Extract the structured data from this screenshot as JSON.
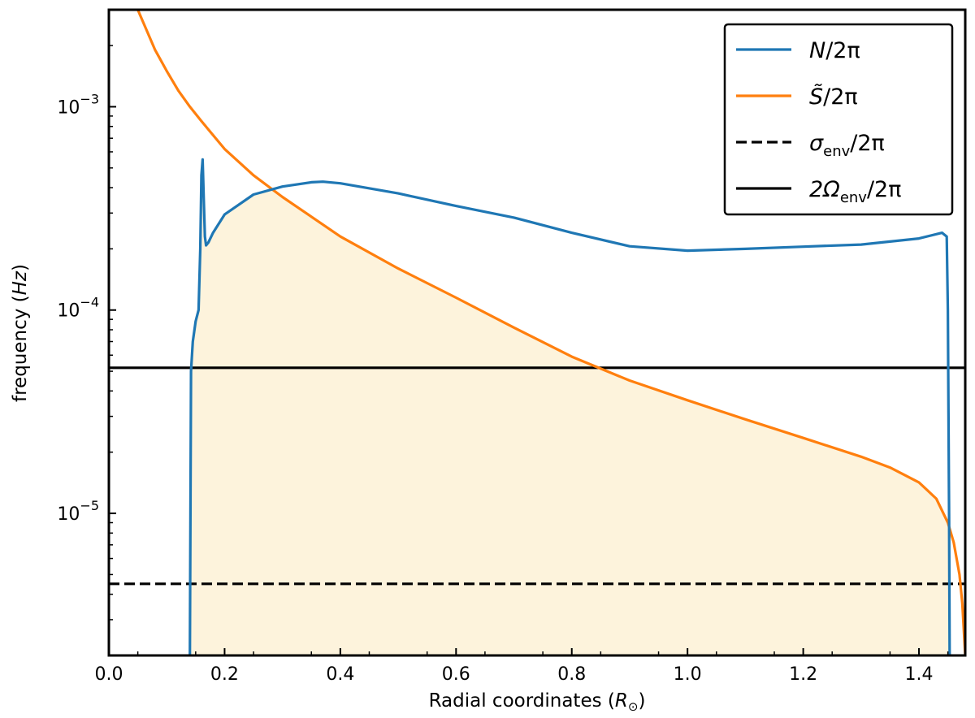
{
  "chart_data": {
    "type": "line",
    "title": "",
    "xlabel": "Radial coordinates",
    "xlabel_unit": "R",
    "xlabel_unit_sub": "⊙",
    "ylabel": "frequency",
    "ylabel_unit": "Hz",
    "xlim": [
      0.0,
      1.48
    ],
    "ylim": [
      2e-06,
      0.003
    ],
    "yscale": "log",
    "grid": false,
    "legend_position": "top-right",
    "x_ticks": [
      0.0,
      0.2,
      0.4,
      0.6,
      0.8,
      1.0,
      1.2,
      1.4
    ],
    "x_tick_labels": [
      "0.0",
      "0.2",
      "0.4",
      "0.6",
      "0.8",
      "1.0",
      "1.2",
      "1.4"
    ],
    "y_ticks": [
      1e-05,
      0.0001,
      0.001
    ],
    "y_tick_labels": [
      {
        "base": "10",
        "exp": "−5"
      },
      {
        "base": "10",
        "exp": "−4"
      },
      {
        "base": "10",
        "exp": "−3"
      }
    ],
    "colors": {
      "N": "#1f77b4",
      "S": "#ff7f0e",
      "fill": "#fdf3dc",
      "axis": "#000000"
    },
    "series": [
      {
        "id": "N",
        "name": "N/2π",
        "legend_symbol": "N",
        "legend_suffix": "/2π",
        "color": "#1f77b4",
        "style": "solid",
        "x": [
          0.14,
          0.141,
          0.142,
          0.145,
          0.15,
          0.155,
          0.158,
          0.16,
          0.162,
          0.164,
          0.166,
          0.168,
          0.172,
          0.18,
          0.2,
          0.25,
          0.3,
          0.35,
          0.37,
          0.4,
          0.5,
          0.6,
          0.7,
          0.8,
          0.9,
          1.0,
          1.1,
          1.2,
          1.3,
          1.4,
          1.44,
          1.448,
          1.45,
          1.452,
          1.453
        ],
        "y": [
          2e-06,
          1e-05,
          5e-05,
          7e-05,
          8.8e-05,
          0.0001,
          0.0002,
          0.00046,
          0.00055,
          0.00035,
          0.00023,
          0.000208,
          0.000215,
          0.00024,
          0.000295,
          0.00037,
          0.000405,
          0.000425,
          0.000428,
          0.00042,
          0.000375,
          0.000325,
          0.000285,
          0.00024,
          0.000206,
          0.000196,
          0.0002,
          0.000205,
          0.00021,
          0.000225,
          0.00024,
          0.00023,
          0.0001,
          1e-05,
          2e-06
        ]
      },
      {
        "id": "S",
        "name": "S̃/2π",
        "legend_symbol": "S̃",
        "legend_suffix": "/2π",
        "color": "#ff7f0e",
        "style": "solid",
        "x": [
          0.05,
          0.08,
          0.1,
          0.12,
          0.14,
          0.16,
          0.2,
          0.25,
          0.3,
          0.4,
          0.5,
          0.6,
          0.7,
          0.8,
          0.9,
          1.0,
          1.1,
          1.2,
          1.3,
          1.35,
          1.4,
          1.43,
          1.45,
          1.46,
          1.47,
          1.475,
          1.48
        ],
        "y": [
          0.003,
          0.0019,
          0.0015,
          0.0012,
          0.001,
          0.00085,
          0.00062,
          0.00046,
          0.00036,
          0.00023,
          0.00016,
          0.000115,
          8.2e-05,
          5.9e-05,
          4.5e-05,
          3.6e-05,
          2.9e-05,
          2.35e-05,
          1.9e-05,
          1.68e-05,
          1.42e-05,
          1.18e-05,
          9e-06,
          7.2e-06,
          5e-06,
          3.6e-06,
          2e-06
        ]
      },
      {
        "id": "sigma",
        "name": "σenv/2π",
        "legend_symbol": "σ",
        "legend_subscript": "env",
        "legend_suffix": "/2π",
        "color": "#000000",
        "style": "dashed",
        "x": [
          0.0,
          1.48
        ],
        "y": [
          4.5e-06,
          4.5e-06
        ]
      },
      {
        "id": "omega",
        "name": "2Ωenv/2π",
        "legend_symbol": "2Ω",
        "legend_subscript": "env",
        "legend_suffix": "/2π",
        "color": "#000000",
        "style": "solid",
        "x": [
          0.0,
          1.48
        ],
        "y": [
          5.2e-05,
          5.2e-05
        ]
      }
    ],
    "fill_region": {
      "description_series": [
        "N",
        "S"
      ],
      "color": "#fdf3dc"
    }
  }
}
